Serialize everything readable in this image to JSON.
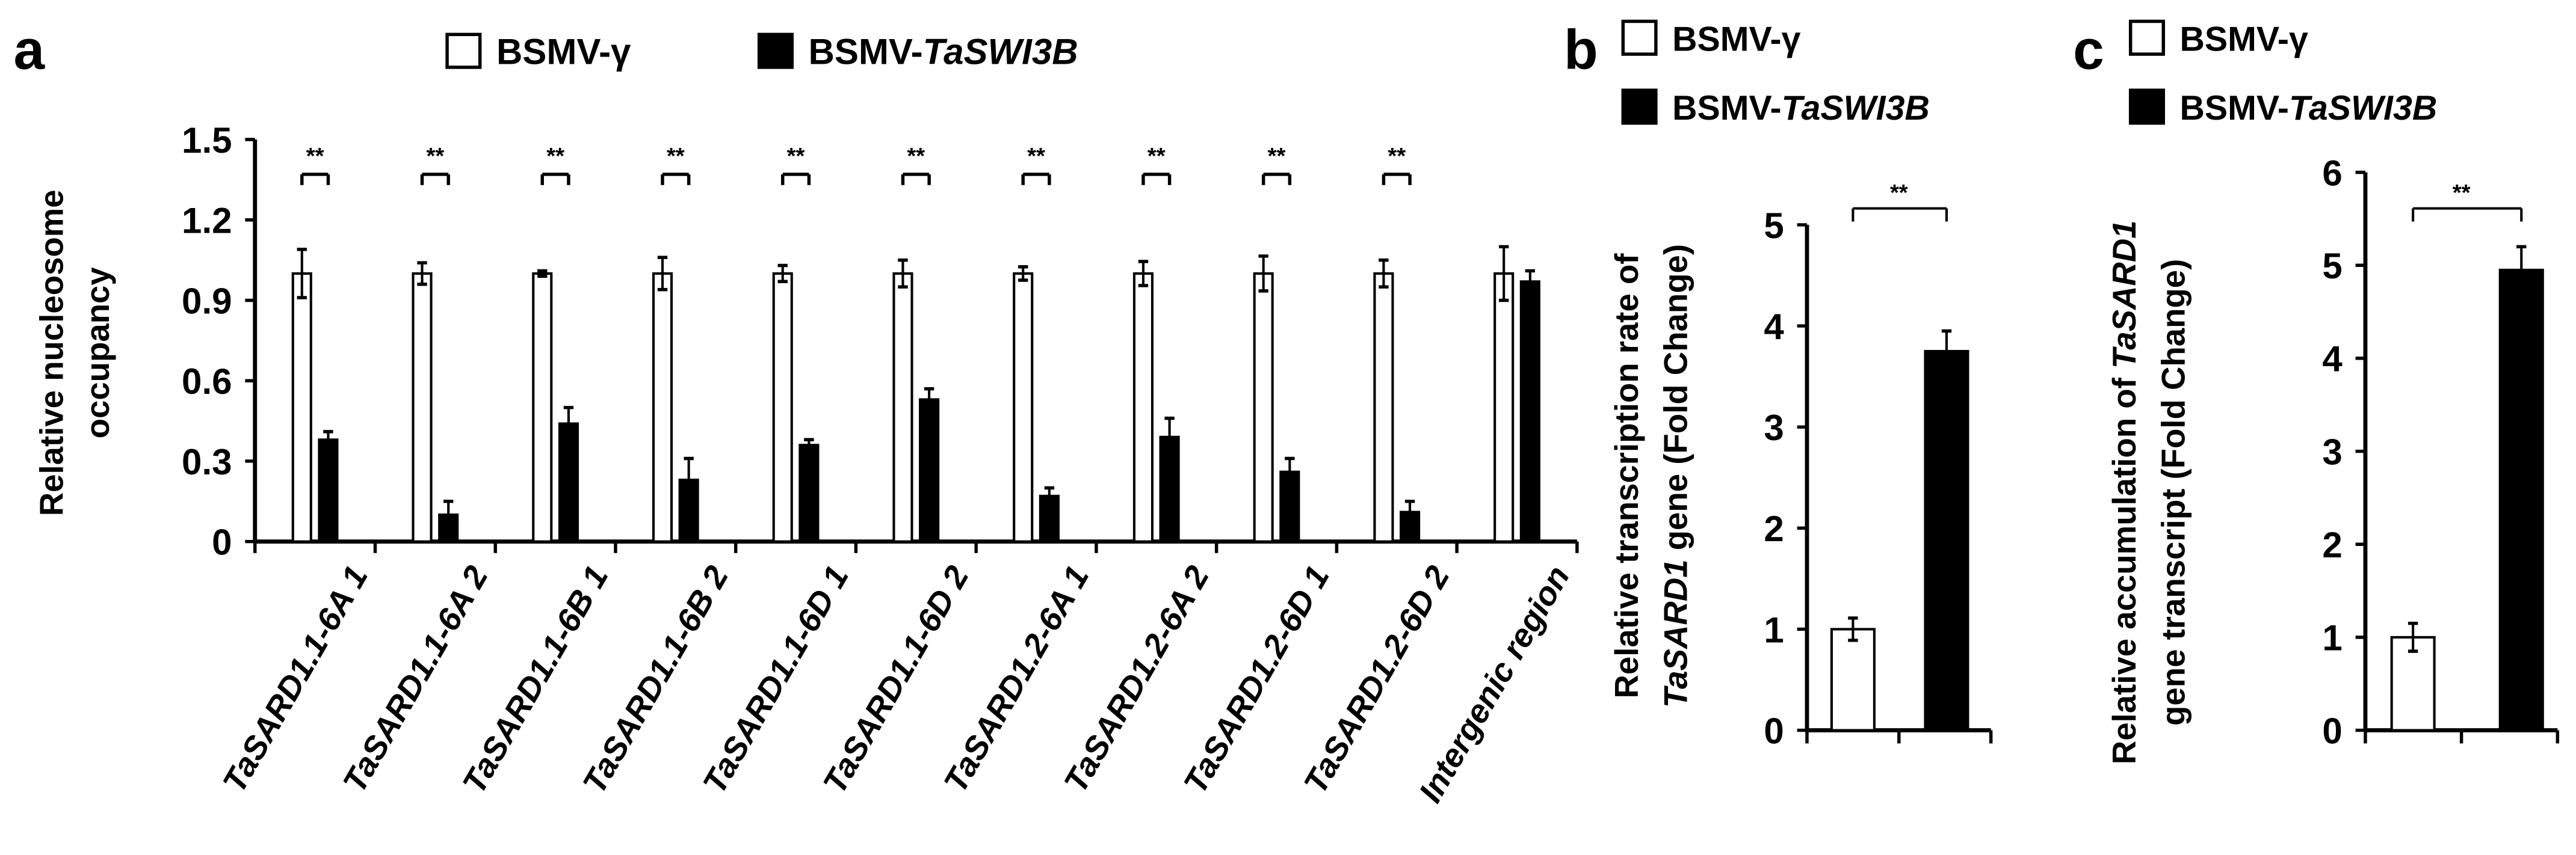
{
  "colors": {
    "bsmv_gamma": "#ffffff",
    "bsmv_taswi3b": "#000000",
    "axis": "#000000"
  },
  "chart_data": [
    {
      "panel": "a",
      "type": "bar",
      "legend": [
        {
          "parts": [
            {
              "t": "BSMV-γ",
              "i": false
            }
          ],
          "color": "#ffffff"
        },
        {
          "parts": [
            {
              "t": "BSMV-",
              "i": false
            },
            {
              "t": "TaSWI3B",
              "i": true
            }
          ],
          "color": "#000000"
        }
      ],
      "legend_placement": "top",
      "ylabel_lines": [
        [
          {
            "t": "Relative nucleosome",
            "i": false
          }
        ],
        [
          {
            "t": "occupancy",
            "i": false
          }
        ]
      ],
      "ylim": [
        0,
        1.5
      ],
      "yticks": [
        "0",
        "0.3",
        "0.6",
        "0.9",
        "1.2",
        "1.5"
      ],
      "categories": [
        "TaSARD1.1-6A 1",
        "TaSARD1.1-6A 2",
        "TaSARD1.1-6B 1",
        "TaSARD1.1-6B 2",
        "TaSARD1.1-6D 1",
        "TaSARD1.1-6D 2",
        "TaSARD1.2-6A 1",
        "TaSARD1.2-6A 2",
        "TaSARD1.2-6D 1",
        "TaSARD1.2-6D 2",
        "Intergenic region"
      ],
      "series": [
        {
          "name": "BSMV-γ",
          "values": [
            1,
            1,
            1,
            1,
            1,
            1,
            1,
            1,
            1,
            1,
            1
          ],
          "errors": [
            0.09,
            0.04,
            0.01,
            0.06,
            0.03,
            0.05,
            0.025,
            0.045,
            0.065,
            0.05,
            0.1
          ]
        },
        {
          "name": "BSMV-TaSWI3B",
          "values": [
            0.38,
            0.1,
            0.44,
            0.23,
            0.36,
            0.53,
            0.17,
            0.39,
            0.26,
            0.11,
            0.97
          ],
          "errors": [
            0.03,
            0.05,
            0.06,
            0.08,
            0.02,
            0.04,
            0.03,
            0.07,
            0.05,
            0.04,
            0.04
          ]
        }
      ],
      "significance": [
        "**",
        "**",
        "**",
        "**",
        "**",
        "**",
        "**",
        "**",
        "**",
        "**",
        ""
      ],
      "grid": false
    },
    {
      "panel": "b",
      "type": "bar",
      "legend": [
        {
          "parts": [
            {
              "t": "BSMV-γ",
              "i": false
            }
          ],
          "color": "#ffffff"
        },
        {
          "parts": [
            {
              "t": "BSMV-",
              "i": false
            },
            {
              "t": "TaSWI3B",
              "i": true
            }
          ],
          "color": "#000000"
        }
      ],
      "legend_placement": "top",
      "ylabel_lines": [
        [
          {
            "t": "Relative transcription rate of",
            "i": false
          }
        ],
        [
          {
            "t": "TaSARD1",
            "i": true
          },
          {
            "t": " gene (Fold Change)",
            "i": false
          }
        ]
      ],
      "ylim": [
        0,
        5
      ],
      "yticks": [
        "0",
        "1",
        "2",
        "3",
        "4",
        "5"
      ],
      "series": [
        {
          "name": "BSMV-γ",
          "values": [
            1.0
          ],
          "errors": [
            0.11
          ]
        },
        {
          "name": "BSMV-TaSWI3B",
          "values": [
            3.75
          ],
          "errors": [
            0.2
          ]
        }
      ],
      "significance": "**",
      "grid": false
    },
    {
      "panel": "c",
      "type": "bar",
      "legend": [
        {
          "parts": [
            {
              "t": "BSMV-γ",
              "i": false
            }
          ],
          "color": "#ffffff"
        },
        {
          "parts": [
            {
              "t": "BSMV-",
              "i": false
            },
            {
              "t": "TaSWI3B",
              "i": true
            }
          ],
          "color": "#000000"
        }
      ],
      "legend_placement": "top",
      "ylabel_lines": [
        [
          {
            "t": "Relative accumulation of ",
            "i": false
          },
          {
            "t": "TaSARD1",
            "i": true
          }
        ],
        [
          {
            "t": "gene transcript (Fold Change)",
            "i": false
          }
        ]
      ],
      "ylim": [
        0,
        6
      ],
      "yticks": [
        "0",
        "1",
        "2",
        "3",
        "4",
        "5",
        "6"
      ],
      "series": [
        {
          "name": "BSMV-γ",
          "values": [
            1.0
          ],
          "errors": [
            0.15
          ]
        },
        {
          "name": "BSMV-TaSWI3B",
          "values": [
            4.95
          ],
          "errors": [
            0.25
          ]
        }
      ],
      "significance": "**",
      "grid": false
    }
  ]
}
